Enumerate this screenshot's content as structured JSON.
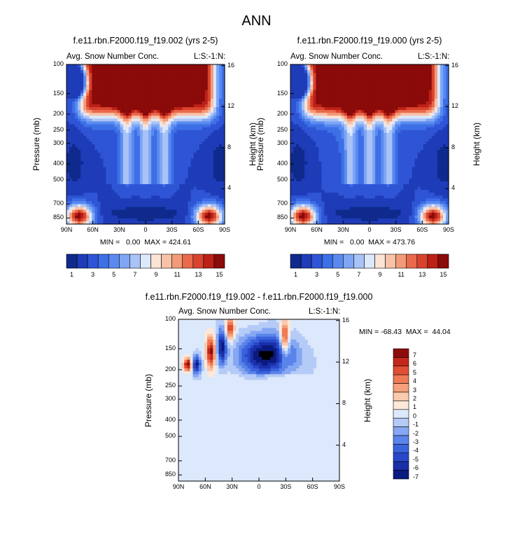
{
  "figure": {
    "title": "ANN"
  },
  "colors": {
    "abs_palette": [
      "#0f2a8c",
      "#1e3cb8",
      "#2f55d6",
      "#3d6fe6",
      "#5a8af0",
      "#7fa6f5",
      "#a9c3f7",
      "#dce8fb",
      "#fbe3d6",
      "#f8c2a8",
      "#f39a78",
      "#ea6a4c",
      "#d9432e",
      "#bb2117",
      "#8b0a0a"
    ],
    "diff_palette": [
      "#0a1a80",
      "#1a2fa8",
      "#2848c9",
      "#3a63dc",
      "#5a84ea",
      "#86a7f2",
      "#b5cbf7",
      "#dce8fb",
      "#fde8d9",
      "#fbc9ac",
      "#f6a07c",
      "#ef7a55",
      "#e04e33",
      "#c4271b",
      "#8e0b0b"
    ],
    "nan": "#ffffff"
  },
  "chart_data": [
    {
      "type": "heatmap",
      "title": "f.e11.rbn.F2000.f19_f19.002 (yrs 2-5)",
      "left_label": "Avg. Snow Number Conc.",
      "right_label": "L:S:-1:N:",
      "ylabel": "Pressure (mb)",
      "ylabel_right": "Height (km)",
      "x_ticks": [
        "90N",
        "60N",
        "30N",
        "0",
        "30S",
        "60S",
        "90S"
      ],
      "y_ticks": [
        "100",
        "150",
        "200",
        "250",
        "300",
        "400",
        "500",
        "700",
        "850"
      ],
      "y_ticks_right": [
        "16",
        "12",
        "8",
        "4"
      ],
      "stats": "MIN =   0.00  MAX = 424.61",
      "colorbar_labels": [
        "1",
        "3",
        "5",
        "7",
        "9",
        "11",
        "13",
        "15"
      ]
    },
    {
      "type": "heatmap",
      "title": "f.e11.rbn.F2000.f19_f19.000 (yrs 2-5)",
      "left_label": "Avg. Snow Number Conc.",
      "right_label": "L:S:-1:N:",
      "ylabel": "Pressure (mb)",
      "ylabel_right": "Height (km)",
      "x_ticks": [
        "90N",
        "60N",
        "30N",
        "0",
        "30S",
        "60S",
        "90S"
      ],
      "y_ticks": [
        "100",
        "150",
        "200",
        "250",
        "300",
        "400",
        "500",
        "700",
        "850"
      ],
      "y_ticks_right": [
        "16",
        "12",
        "8",
        "4"
      ],
      "stats": "MIN =   0.00  MAX = 473.76",
      "colorbar_labels": [
        "1",
        "3",
        "5",
        "7",
        "9",
        "11",
        "13",
        "15"
      ]
    },
    {
      "type": "heatmap",
      "title": "f.e11.rbn.F2000.f19_f19.002 - f.e11.rbn.F2000.f19_f19.000",
      "left_label": "Avg. Snow Number Conc.",
      "right_label": "L:S:-1:N:",
      "ylabel": "Pressure (mb)",
      "ylabel_right": "Height (km)",
      "x_ticks": [
        "90N",
        "60N",
        "30N",
        "0",
        "30S",
        "60S",
        "90S"
      ],
      "y_ticks": [
        "100",
        "150",
        "200",
        "250",
        "300",
        "400",
        "500",
        "700",
        "850"
      ],
      "y_ticks_right": [
        "16",
        "12",
        "8",
        "4"
      ],
      "stats": "MIN = -68.43  MAX =  44.04",
      "colorbar_labels": [
        "7",
        "6",
        "5",
        "4",
        "3",
        "2",
        "1",
        "0",
        "-1",
        "-2",
        "-3",
        "-4",
        "-5",
        "-6",
        "-7"
      ]
    }
  ]
}
